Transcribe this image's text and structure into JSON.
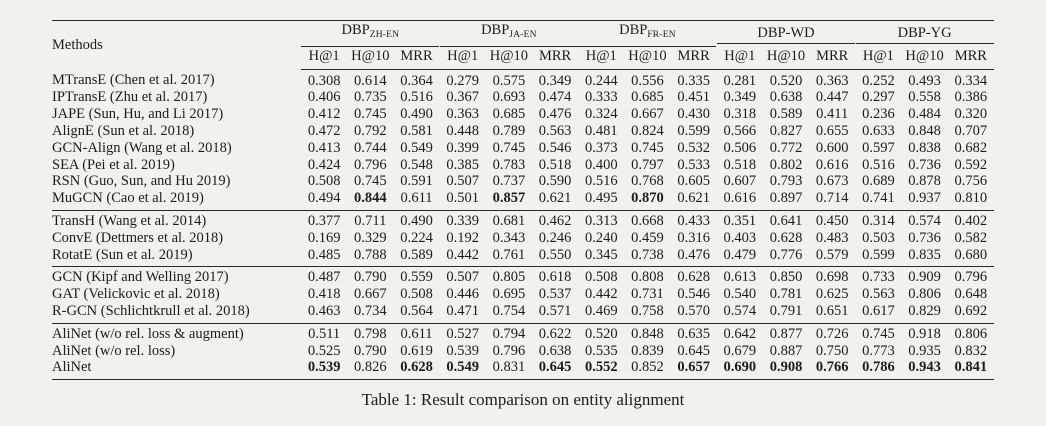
{
  "caption": "Table 1: Result comparison on entity alignment",
  "table": {
    "methods_header": "Methods",
    "subcolumns": [
      "H@1",
      "H@10",
      "MRR"
    ],
    "groups": [
      {
        "name": "DBP",
        "subscript": "ZH-EN"
      },
      {
        "name": "DBP",
        "subscript": "JA-EN"
      },
      {
        "name": "DBP",
        "subscript": "FR-EN"
      },
      {
        "name": "DBP-WD",
        "subscript": ""
      },
      {
        "name": "DBP-YG",
        "subscript": ""
      }
    ],
    "row_groups": [
      {
        "rows": [
          {
            "method": "MTransE (Chen et al. 2017)",
            "values": [
              "0.308",
              "0.614",
              "0.364",
              "0.279",
              "0.575",
              "0.349",
              "0.244",
              "0.556",
              "0.335",
              "0.281",
              "0.520",
              "0.363",
              "0.252",
              "0.493",
              "0.334"
            ],
            "bold": []
          },
          {
            "method": "IPTransE (Zhu et al. 2017)",
            "values": [
              "0.406",
              "0.735",
              "0.516",
              "0.367",
              "0.693",
              "0.474",
              "0.333",
              "0.685",
              "0.451",
              "0.349",
              "0.638",
              "0.447",
              "0.297",
              "0.558",
              "0.386"
            ],
            "bold": []
          },
          {
            "method": "JAPE (Sun, Hu, and Li 2017)",
            "values": [
              "0.412",
              "0.745",
              "0.490",
              "0.363",
              "0.685",
              "0.476",
              "0.324",
              "0.667",
              "0.430",
              "0.318",
              "0.589",
              "0.411",
              "0.236",
              "0.484",
              "0.320"
            ],
            "bold": []
          },
          {
            "method": "AlignE (Sun et al. 2018)",
            "values": [
              "0.472",
              "0.792",
              "0.581",
              "0.448",
              "0.789",
              "0.563",
              "0.481",
              "0.824",
              "0.599",
              "0.566",
              "0.827",
              "0.655",
              "0.633",
              "0.848",
              "0.707"
            ],
            "bold": []
          },
          {
            "method": "GCN-Align (Wang et al. 2018)",
            "values": [
              "0.413",
              "0.744",
              "0.549",
              "0.399",
              "0.745",
              "0.546",
              "0.373",
              "0.745",
              "0.532",
              "0.506",
              "0.772",
              "0.600",
              "0.597",
              "0.838",
              "0.682"
            ],
            "bold": []
          },
          {
            "method": "SEA (Pei et al. 2019)",
            "values": [
              "0.424",
              "0.796",
              "0.548",
              "0.385",
              "0.783",
              "0.518",
              "0.400",
              "0.797",
              "0.533",
              "0.518",
              "0.802",
              "0.616",
              "0.516",
              "0.736",
              "0.592"
            ],
            "bold": []
          },
          {
            "method": "RSN (Guo, Sun, and Hu 2019)",
            "values": [
              "0.508",
              "0.745",
              "0.591",
              "0.507",
              "0.737",
              "0.590",
              "0.516",
              "0.768",
              "0.605",
              "0.607",
              "0.793",
              "0.673",
              "0.689",
              "0.878",
              "0.756"
            ],
            "bold": []
          },
          {
            "method": "MuGCN (Cao et al. 2019)",
            "values": [
              "0.494",
              "0.844",
              "0.611",
              "0.501",
              "0.857",
              "0.621",
              "0.495",
              "0.870",
              "0.621",
              "0.616",
              "0.897",
              "0.714",
              "0.741",
              "0.937",
              "0.810"
            ],
            "bold": [
              1,
              4,
              7
            ]
          }
        ]
      },
      {
        "rows": [
          {
            "method": "TransH (Wang et al. 2014)",
            "values": [
              "0.377",
              "0.711",
              "0.490",
              "0.339",
              "0.681",
              "0.462",
              "0.313",
              "0.668",
              "0.433",
              "0.351",
              "0.641",
              "0.450",
              "0.314",
              "0.574",
              "0.402"
            ],
            "bold": []
          },
          {
            "method": "ConvE (Dettmers et al. 2018)",
            "values": [
              "0.169",
              "0.329",
              "0.224",
              "0.192",
              "0.343",
              "0.246",
              "0.240",
              "0.459",
              "0.316",
              "0.403",
              "0.628",
              "0.483",
              "0.503",
              "0.736",
              "0.582"
            ],
            "bold": []
          },
          {
            "method": "RotatE (Sun et al. 2019)",
            "values": [
              "0.485",
              "0.788",
              "0.589",
              "0.442",
              "0.761",
              "0.550",
              "0.345",
              "0.738",
              "0.476",
              "0.479",
              "0.776",
              "0.579",
              "0.599",
              "0.835",
              "0.680"
            ],
            "bold": []
          }
        ]
      },
      {
        "rows": [
          {
            "method": "GCN (Kipf and Welling 2017)",
            "values": [
              "0.487",
              "0.790",
              "0.559",
              "0.507",
              "0.805",
              "0.618",
              "0.508",
              "0.808",
              "0.628",
              "0.613",
              "0.850",
              "0.698",
              "0.733",
              "0.909",
              "0.796"
            ],
            "bold": []
          },
          {
            "method": "GAT (Velickovic et al. 2018)",
            "values": [
              "0.418",
              "0.667",
              "0.508",
              "0.446",
              "0.695",
              "0.537",
              "0.442",
              "0.731",
              "0.546",
              "0.540",
              "0.781",
              "0.625",
              "0.563",
              "0.806",
              "0.648"
            ],
            "bold": []
          },
          {
            "method": "R-GCN (Schlichtkrull et al. 2018)",
            "values": [
              "0.463",
              "0.734",
              "0.564",
              "0.471",
              "0.754",
              "0.571",
              "0.469",
              "0.758",
              "0.570",
              "0.574",
              "0.791",
              "0.651",
              "0.617",
              "0.829",
              "0.692"
            ],
            "bold": []
          }
        ]
      },
      {
        "rows": [
          {
            "method": "AliNet (w/o rel. loss & augment)",
            "values": [
              "0.511",
              "0.798",
              "0.611",
              "0.527",
              "0.794",
              "0.622",
              "0.520",
              "0.848",
              "0.635",
              "0.642",
              "0.877",
              "0.726",
              "0.745",
              "0.918",
              "0.806"
            ],
            "bold": []
          },
          {
            "method": "AliNet (w/o rel. loss)",
            "values": [
              "0.525",
              "0.790",
              "0.619",
              "0.539",
              "0.796",
              "0.638",
              "0.535",
              "0.839",
              "0.645",
              "0.679",
              "0.887",
              "0.750",
              "0.773",
              "0.935",
              "0.832"
            ],
            "bold": []
          },
          {
            "method": "AliNet",
            "values": [
              "0.539",
              "0.826",
              "0.628",
              "0.549",
              "0.831",
              "0.645",
              "0.552",
              "0.852",
              "0.657",
              "0.690",
              "0.908",
              "0.766",
              "0.786",
              "0.943",
              "0.841"
            ],
            "bold": [
              0,
              2,
              3,
              5,
              6,
              8,
              9,
              10,
              11,
              12,
              13,
              14
            ]
          }
        ]
      }
    ]
  }
}
